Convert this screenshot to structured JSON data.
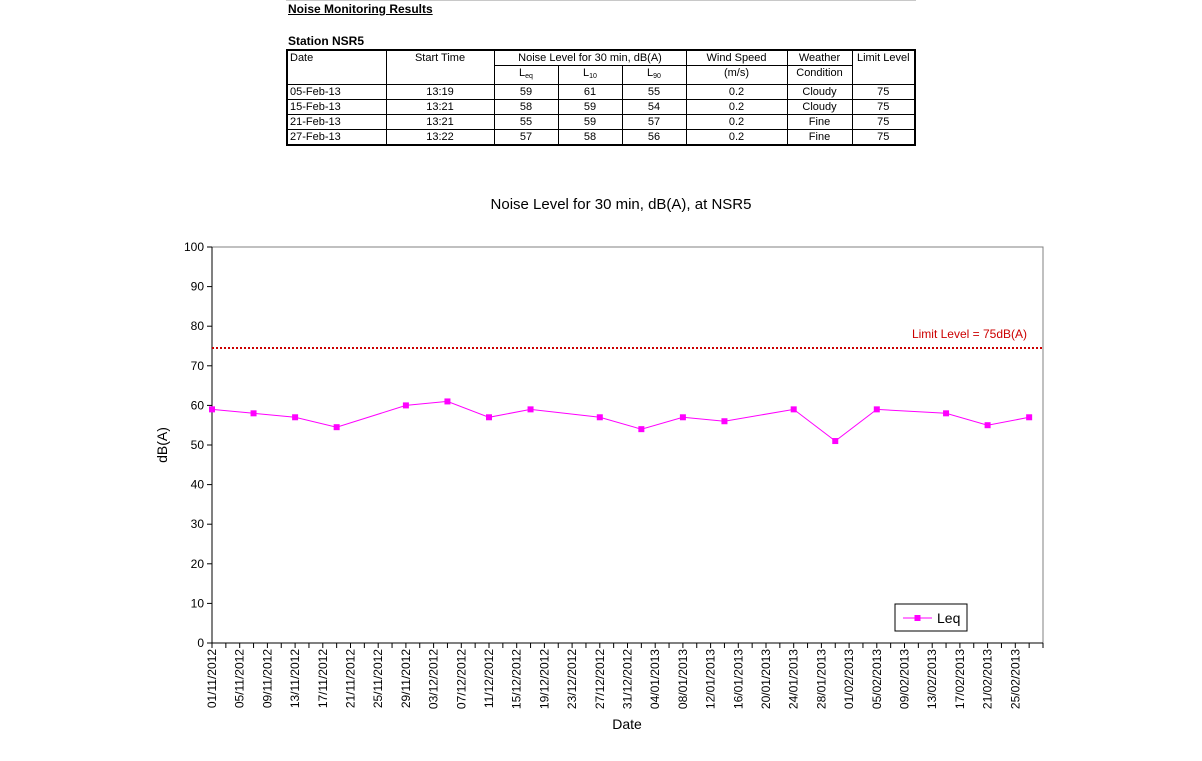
{
  "report": {
    "title": "Noise Monitoring Results",
    "station": "Station NSR5"
  },
  "table": {
    "headers": {
      "date": "Date",
      "start_time": "Start Time",
      "noise_group": "Noise Level for 30 min, dB(A)",
      "leq_main": "L",
      "leq_sub": "eq",
      "l10_main": "L",
      "l10_sub": "10",
      "l90_main": "L",
      "l90_sub": "90",
      "wind_line1": "Wind Speed",
      "wind_line2": "(m/s)",
      "weather_line1": "Weather",
      "weather_line2": "Condition",
      "limit": "Limit Level"
    },
    "rows": [
      {
        "date": "05-Feb-13",
        "time": "13:19",
        "leq": "59",
        "l10": "61",
        "l90": "55",
        "wind": "0.2",
        "weather": "Cloudy",
        "limit": "75"
      },
      {
        "date": "15-Feb-13",
        "time": "13:21",
        "leq": "58",
        "l10": "59",
        "l90": "54",
        "wind": "0.2",
        "weather": "Cloudy",
        "limit": "75"
      },
      {
        "date": "21-Feb-13",
        "time": "13:21",
        "leq": "55",
        "l10": "59",
        "l90": "57",
        "wind": "0.2",
        "weather": "Fine",
        "limit": "75"
      },
      {
        "date": "27-Feb-13",
        "time": "13:22",
        "leq": "57",
        "l10": "58",
        "l90": "56",
        "wind": "0.2",
        "weather": "Fine",
        "limit": "75"
      }
    ]
  },
  "chart_data": {
    "type": "line",
    "title": "Noise Level for 30 min, dB(A), at NSR5",
    "xlabel": "Date",
    "ylabel": "dB(A)",
    "ylim": [
      0,
      100
    ],
    "yticks": [
      "0",
      "10",
      "20",
      "30",
      "40",
      "50",
      "60",
      "70",
      "80",
      "90",
      "100"
    ],
    "xlim": [
      "01/11/2012",
      "01/03/2013"
    ],
    "xticks": [
      "01/11/2012",
      "05/11/2012",
      "09/11/2012",
      "13/11/2012",
      "17/11/2012",
      "21/11/2012",
      "25/11/2012",
      "29/11/2012",
      "03/12/2012",
      "07/12/2012",
      "11/12/2012",
      "15/12/2012",
      "19/12/2012",
      "23/12/2012",
      "27/12/2012",
      "31/12/2012",
      "04/01/2013",
      "08/01/2013",
      "12/01/2013",
      "16/01/2013",
      "20/01/2013",
      "24/01/2013",
      "28/01/2013",
      "01/02/2013",
      "05/02/2013",
      "09/02/2013",
      "13/02/2013",
      "17/02/2013",
      "21/02/2013",
      "25/02/2013"
    ],
    "grid": false,
    "legend_position": "bottom-right",
    "series": [
      {
        "name": "Leq",
        "color": "#ff00ff",
        "marker": "square",
        "points": [
          {
            "x": "01/11/2012",
            "y": 59
          },
          {
            "x": "07/11/2012",
            "y": 58
          },
          {
            "x": "13/11/2012",
            "y": 57
          },
          {
            "x": "19/11/2012",
            "y": 54.5
          },
          {
            "x": "29/11/2012",
            "y": 60
          },
          {
            "x": "05/12/2012",
            "y": 61
          },
          {
            "x": "11/12/2012",
            "y": 57
          },
          {
            "x": "17/12/2012",
            "y": 59
          },
          {
            "x": "27/12/2012",
            "y": 57
          },
          {
            "x": "02/01/2013",
            "y": 54
          },
          {
            "x": "08/01/2013",
            "y": 57
          },
          {
            "x": "14/01/2013",
            "y": 56
          },
          {
            "x": "24/01/2013",
            "y": 59
          },
          {
            "x": "30/01/2013",
            "y": 51
          },
          {
            "x": "05/02/2013",
            "y": 59
          },
          {
            "x": "15/02/2013",
            "y": 58
          },
          {
            "x": "21/02/2013",
            "y": 55
          },
          {
            "x": "27/02/2013",
            "y": 57
          }
        ]
      }
    ],
    "limit_line": {
      "y": 74.5,
      "label": "Limit Level = 75dB(A)",
      "color": "#cc0000"
    }
  }
}
